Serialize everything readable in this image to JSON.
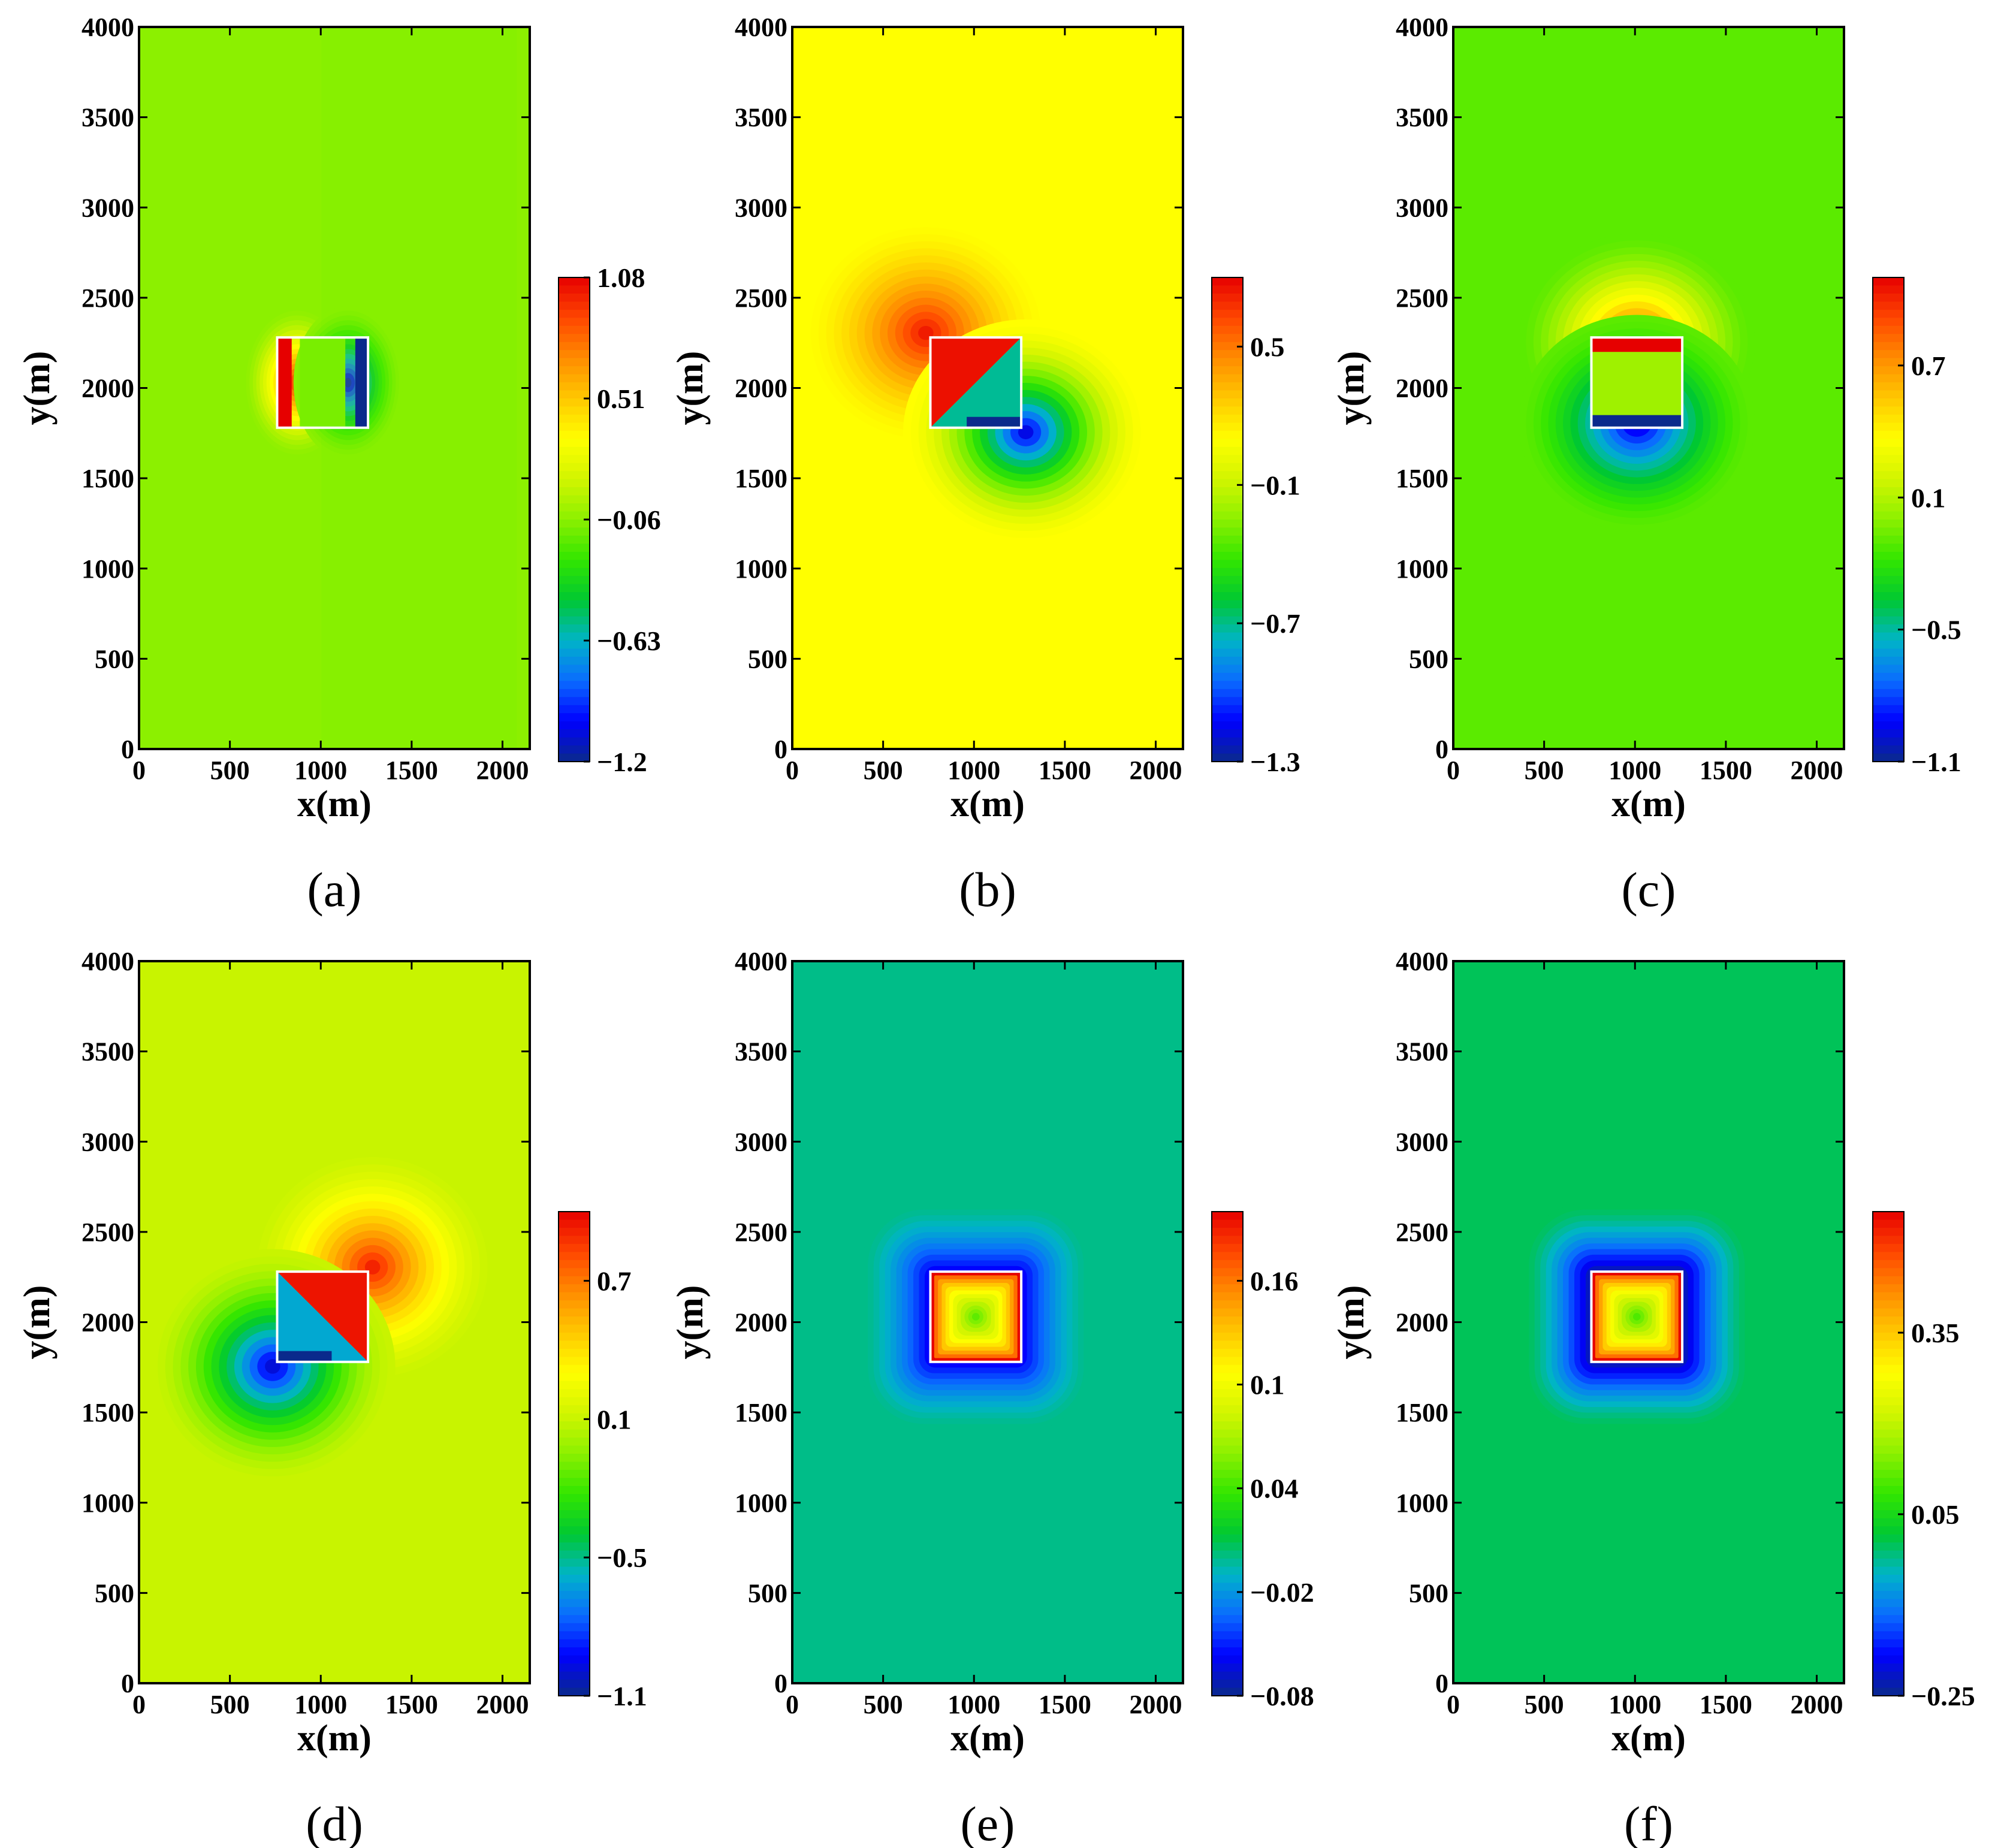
{
  "colors": {
    "jet": [
      "#0a2a8c",
      "#0000ff",
      "#0a6cff",
      "#00b4c8",
      "#00c832",
      "#32e600",
      "#8cf000",
      "#d2f500",
      "#ffff00",
      "#ffc800",
      "#ff8c00",
      "#ff4600",
      "#e60000"
    ],
    "box_outline": "#ffffff"
  },
  "chart_data": [
    {
      "id": "a",
      "type": "heatmap",
      "panel_label": "(a)",
      "xlabel": "x(m)",
      "ylabel": "y(m)",
      "xlim": [
        0,
        2150
      ],
      "ylim": [
        0,
        4000
      ],
      "xticks": [
        0,
        500,
        1000,
        1500,
        2000
      ],
      "yticks": [
        0,
        500,
        1000,
        1500,
        2000,
        2500,
        3000,
        3500,
        4000
      ],
      "colorbar": {
        "min": -1.2,
        "max": 1.08,
        "ticks": [
          1.08,
          0.51,
          -0.06,
          -0.63,
          -1.2
        ],
        "tick_labels": [
          "1.08",
          "0.51",
          "−0.06",
          "−0.63",
          "−1.2"
        ]
      },
      "background_value": -0.06,
      "anomaly_box": {
        "x": [
          760,
          1260
        ],
        "y": [
          1780,
          2280
        ]
      },
      "field": "horizontal dipole: positive at west face, negative at east face"
    },
    {
      "id": "b",
      "type": "heatmap",
      "panel_label": "(b)",
      "xlabel": "x(m)",
      "ylabel": "y(m)",
      "xlim": [
        0,
        2150
      ],
      "ylim": [
        0,
        4000
      ],
      "xticks": [
        0,
        500,
        1000,
        1500,
        2000
      ],
      "yticks": [
        0,
        500,
        1000,
        1500,
        2000,
        2500,
        3000,
        3500,
        4000
      ],
      "colorbar": {
        "min": -1.3,
        "max": 0.8,
        "ticks": [
          0.5,
          -0.1,
          -0.7,
          -1.3
        ],
        "tick_labels": [
          "0.5",
          "−0.1",
          "−0.7",
          "−1.3"
        ]
      },
      "background_value": 0.1,
      "anomaly_box": {
        "x": [
          760,
          1260
        ],
        "y": [
          1780,
          2280
        ]
      },
      "field": "diagonal dipole: positive upper-left, negative lower-right"
    },
    {
      "id": "c",
      "type": "heatmap",
      "panel_label": "(c)",
      "xlabel": "x(m)",
      "ylabel": "y(m)",
      "xlim": [
        0,
        2150
      ],
      "ylim": [
        0,
        4000
      ],
      "xticks": [
        0,
        500,
        1000,
        1500,
        2000
      ],
      "yticks": [
        0,
        500,
        1000,
        1500,
        2000,
        2500,
        3000,
        3500,
        4000
      ],
      "colorbar": {
        "min": -1.1,
        "max": 1.1,
        "ticks": [
          0.7,
          0.1,
          -0.5,
          -1.1
        ],
        "tick_labels": [
          "0.7",
          "0.1",
          "−0.5",
          "−1.1"
        ]
      },
      "background_value": -0.1,
      "anomaly_box": {
        "x": [
          760,
          1260
        ],
        "y": [
          1780,
          2280
        ]
      },
      "field": "vertical dipole: positive at north face, negative at south face"
    },
    {
      "id": "d",
      "type": "heatmap",
      "panel_label": "(d)",
      "xlabel": "x(m)",
      "ylabel": "y(m)",
      "xlim": [
        0,
        2150
      ],
      "ylim": [
        0,
        4000
      ],
      "xticks": [
        0,
        500,
        1000,
        1500,
        2000
      ],
      "yticks": [
        0,
        500,
        1000,
        1500,
        2000,
        2500,
        3000,
        3500,
        4000
      ],
      "colorbar": {
        "min": -1.1,
        "max": 1.0,
        "ticks": [
          0.7,
          0.1,
          -0.5,
          -1.1
        ],
        "tick_labels": [
          "0.7",
          "0.1",
          "−0.5",
          "−1.1"
        ]
      },
      "background_value": 0.1,
      "anomaly_box": {
        "x": [
          760,
          1260
        ],
        "y": [
          1780,
          2280
        ]
      },
      "field": "diagonal dipole: positive upper-right, negative lower-left"
    },
    {
      "id": "e",
      "type": "heatmap",
      "panel_label": "(e)",
      "xlabel": "x(m)",
      "ylabel": "y(m)",
      "xlim": [
        0,
        2150
      ],
      "ylim": [
        0,
        4000
      ],
      "xticks": [
        0,
        500,
        1000,
        1500,
        2000
      ],
      "yticks": [
        0,
        500,
        1000,
        1500,
        2000,
        2500,
        3000,
        3500,
        4000
      ],
      "colorbar": {
        "min": -0.08,
        "max": 0.2,
        "ticks": [
          0.16,
          0.1,
          0.04,
          -0.02,
          -0.08
        ],
        "tick_labels": [
          "0.16",
          "0.1",
          "0.04",
          "−0.02",
          "−0.08"
        ]
      },
      "background_value": 0.0,
      "anomaly_box": {
        "x": [
          760,
          1260
        ],
        "y": [
          1780,
          2280
        ]
      },
      "field": "box interior positive (high at rim), negative halo outside"
    },
    {
      "id": "f",
      "type": "heatmap",
      "panel_label": "(f)",
      "xlabel": "x(m)",
      "ylabel": "y(m)",
      "xlim": [
        0,
        2150
      ],
      "ylim": [
        0,
        4000
      ],
      "xticks": [
        0,
        500,
        1000,
        1500,
        2000
      ],
      "yticks": [
        0,
        500,
        1000,
        1500,
        2000,
        2500,
        3000,
        3500,
        4000
      ],
      "colorbar": {
        "min": -0.25,
        "max": 0.55,
        "ticks": [
          0.35,
          0.05,
          -0.25
        ],
        "tick_labels": [
          "0.35",
          "0.05",
          "−0.25"
        ]
      },
      "background_value": 0.0,
      "anomaly_box": {
        "x": [
          760,
          1260
        ],
        "y": [
          1780,
          2280
        ]
      },
      "field": "box interior positive (high at rim), stronger negative halo outside"
    }
  ]
}
